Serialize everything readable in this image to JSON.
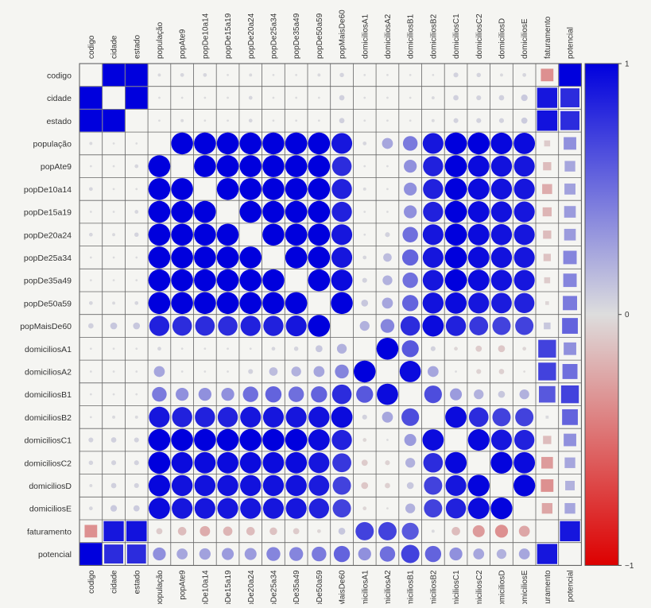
{
  "chart_data": {
    "type": "heatmap",
    "style": "correlogram",
    "marker_rule": "circles below the 12th variable, squares from it onward; area proportional to |r|; diagonal empty",
    "colormap": {
      "negative": "#dd0000",
      "zero": "#dddddd",
      "positive": "#0000dd"
    },
    "colorbar": {
      "range": [
        -1,
        1
      ],
      "ticks": [
        -1,
        0,
        1
      ],
      "tick_labels": [
        "−1",
        "0",
        "1"
      ],
      "position": "right"
    },
    "variables": [
      "codigo",
      "cidade",
      "estado",
      "população",
      "popAte9",
      "popDe10a14",
      "popDe15a19",
      "popDe20a24",
      "popDe25a34",
      "popDe35a49",
      "popDe50a59",
      "popMaisDe60",
      "domiciliosA1",
      "domiciliosA2",
      "domiciliosB1",
      "domiciliosB2",
      "domiciliosC1",
      "domiciliosC2",
      "domiciliosD",
      "domiciliosE",
      "faturamento",
      "potencial"
    ],
    "matrix": [
      [
        1,
        1,
        1,
        0.02,
        0.03,
        0.03,
        0.01,
        0.02,
        0.01,
        0.01,
        0.02,
        0.04,
        0.01,
        0.01,
        0.01,
        0.01,
        0.05,
        0.04,
        0.02,
        0.03,
        -0.35,
        1
      ],
      [
        1,
        1,
        1,
        0.01,
        0.01,
        0.01,
        0.01,
        0.03,
        0.01,
        0.01,
        0.01,
        0.06,
        0.01,
        0.01,
        0.01,
        0.02,
        0.06,
        0.05,
        0.06,
        0.09,
        0.9,
        0.8
      ],
      [
        1,
        1,
        1,
        0.01,
        0.02,
        0.01,
        0.01,
        0.03,
        0.01,
        0.01,
        0.01,
        0.06,
        0.01,
        0.01,
        0.01,
        0.02,
        0.05,
        0.05,
        0.05,
        0.08,
        0.92,
        0.8
      ],
      [
        0.02,
        0.01,
        0.01,
        1,
        1,
        1,
        1,
        1,
        1,
        1,
        1,
        0.9,
        0.03,
        0.25,
        0.45,
        0.9,
        1,
        1,
        0.97,
        0.95,
        -0.08,
        0.35
      ],
      [
        0.01,
        0.01,
        0.03,
        1,
        1,
        1,
        1,
        1,
        1,
        1,
        1,
        0.8,
        0.01,
        0.01,
        0.35,
        0.85,
        1,
        0.95,
        0.92,
        0.9,
        -0.15,
        0.25
      ],
      [
        0.03,
        0.01,
        0.01,
        1,
        1,
        1,
        1,
        1,
        1,
        1,
        1,
        0.85,
        0.02,
        0.01,
        0.35,
        0.85,
        1,
        0.95,
        0.92,
        0.9,
        -0.22,
        0.27
      ],
      [
        0.01,
        0.01,
        0.03,
        1,
        1,
        1,
        1,
        1,
        1,
        1,
        1,
        0.85,
        0.01,
        0.01,
        0.35,
        0.85,
        1,
        0.95,
        0.92,
        0.9,
        -0.18,
        0.3
      ],
      [
        0.03,
        0.02,
        0.04,
        1,
        1,
        1,
        1,
        1,
        1,
        1,
        1,
        0.9,
        0.01,
        0.05,
        0.5,
        0.9,
        1,
        0.95,
        0.92,
        0.9,
        -0.15,
        0.3
      ],
      [
        0.01,
        0.01,
        0.01,
        1,
        1,
        1,
        1,
        1,
        1,
        1,
        1,
        0.9,
        0.03,
        0.15,
        0.55,
        0.9,
        1,
        0.95,
        0.92,
        0.9,
        -0.12,
        0.4
      ],
      [
        0.01,
        0.01,
        0.01,
        1,
        1,
        1,
        1,
        1,
        1,
        1,
        1,
        0.95,
        0.05,
        0.2,
        0.5,
        0.9,
        1,
        0.95,
        0.92,
        0.9,
        -0.08,
        0.4
      ],
      [
        0.03,
        0.02,
        0.03,
        1,
        1,
        1,
        1,
        1,
        1,
        1,
        1,
        1,
        0.1,
        0.25,
        0.55,
        0.92,
        0.95,
        0.9,
        0.88,
        0.85,
        -0.03,
        0.45
      ],
      [
        0.06,
        0.1,
        0.1,
        0.85,
        0.8,
        0.8,
        0.8,
        0.85,
        0.85,
        0.9,
        1,
        1,
        0.2,
        0.4,
        0.8,
        0.95,
        0.85,
        0.75,
        0.7,
        0.7,
        0.1,
        0.55
      ],
      [
        0.01,
        0.01,
        0.01,
        0.03,
        0.01,
        0.01,
        0.01,
        0.01,
        0.03,
        0.04,
        0.1,
        0.2,
        1,
        1,
        0.6,
        0.05,
        -0.03,
        -0.08,
        -0.1,
        -0.03,
        0.7,
        0.35
      ],
      [
        0.01,
        0.01,
        0.01,
        0.25,
        0.01,
        0.01,
        0.01,
        0.05,
        0.15,
        0.2,
        0.25,
        0.4,
        1,
        1,
        0.95,
        0.25,
        0.01,
        -0.05,
        -0.06,
        -0.01,
        0.7,
        0.5
      ],
      [
        0.01,
        0.01,
        0.01,
        0.45,
        0.35,
        0.35,
        0.35,
        0.5,
        0.55,
        0.5,
        0.55,
        0.8,
        0.6,
        0.95,
        1,
        0.65,
        0.3,
        0.2,
        0.1,
        0.2,
        0.6,
        0.7
      ],
      [
        0.01,
        0.02,
        0.02,
        0.9,
        0.85,
        0.85,
        0.85,
        0.9,
        0.9,
        0.9,
        0.92,
        0.95,
        0.05,
        0.25,
        0.65,
        1,
        0.95,
        0.8,
        0.7,
        0.7,
        0.02,
        0.55
      ],
      [
        0.05,
        0.06,
        0.05,
        1,
        1,
        1,
        1,
        1,
        1,
        1,
        0.95,
        0.85,
        -0.03,
        0.01,
        0.3,
        0.95,
        1,
        0.97,
        0.9,
        0.85,
        -0.15,
        0.35
      ],
      [
        0.04,
        0.05,
        0.05,
        1,
        0.95,
        0.95,
        0.95,
        0.95,
        0.95,
        0.95,
        0.9,
        0.75,
        -0.08,
        -0.05,
        0.2,
        0.8,
        0.97,
        1,
        0.98,
        0.95,
        -0.3,
        0.25
      ],
      [
        0.02,
        0.06,
        0.05,
        0.97,
        0.92,
        0.92,
        0.92,
        0.92,
        0.92,
        0.92,
        0.88,
        0.7,
        -0.1,
        -0.06,
        0.1,
        0.7,
        0.9,
        0.98,
        1,
        0.98,
        -0.35,
        0.2
      ],
      [
        0.03,
        0.09,
        0.08,
        0.95,
        0.9,
        0.9,
        0.9,
        0.9,
        0.9,
        0.9,
        0.85,
        0.7,
        -0.03,
        -0.01,
        0.2,
        0.7,
        0.85,
        0.95,
        0.98,
        1,
        -0.25,
        0.25
      ],
      [
        -0.35,
        0.9,
        0.92,
        -0.08,
        -0.15,
        -0.22,
        -0.18,
        -0.15,
        -0.12,
        -0.08,
        -0.03,
        0.1,
        0.7,
        0.7,
        0.6,
        0.02,
        -0.15,
        -0.3,
        -0.35,
        -0.25,
        1,
        0.9
      ],
      [
        1,
        0.8,
        0.8,
        0.35,
        0.25,
        0.27,
        0.3,
        0.3,
        0.4,
        0.4,
        0.45,
        0.55,
        0.35,
        0.5,
        0.7,
        0.55,
        0.35,
        0.25,
        0.2,
        0.25,
        0.9,
        1
      ]
    ]
  }
}
